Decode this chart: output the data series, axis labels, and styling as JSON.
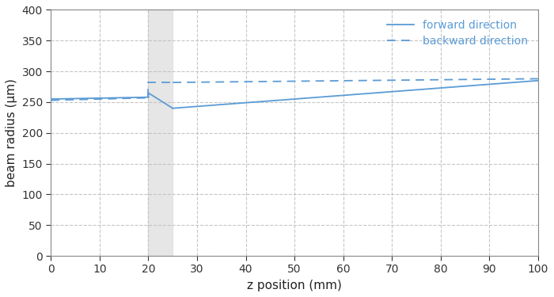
{
  "xlabel": "z position (mm)",
  "ylabel": "beam radius (μm)",
  "xlim": [
    0,
    100
  ],
  "ylim": [
    0,
    400
  ],
  "xticks": [
    0,
    10,
    20,
    30,
    40,
    50,
    60,
    70,
    80,
    90,
    100
  ],
  "yticks": [
    0,
    50,
    100,
    150,
    200,
    250,
    300,
    350,
    400
  ],
  "line_color": "#5b9bd5",
  "shaded_region": [
    20,
    25
  ],
  "shaded_color": "#e0e0e0",
  "shaded_alpha": 0.8,
  "legend_labels": [
    "forward direction",
    "backward direction"
  ],
  "legend_loc": "upper right",
  "grid_color": "#c0c0c0",
  "grid_style": "--",
  "grid_alpha": 0.9,
  "figsize": [
    7.0,
    3.75
  ],
  "dpi": 100,
  "bg_color": "#ffffff"
}
